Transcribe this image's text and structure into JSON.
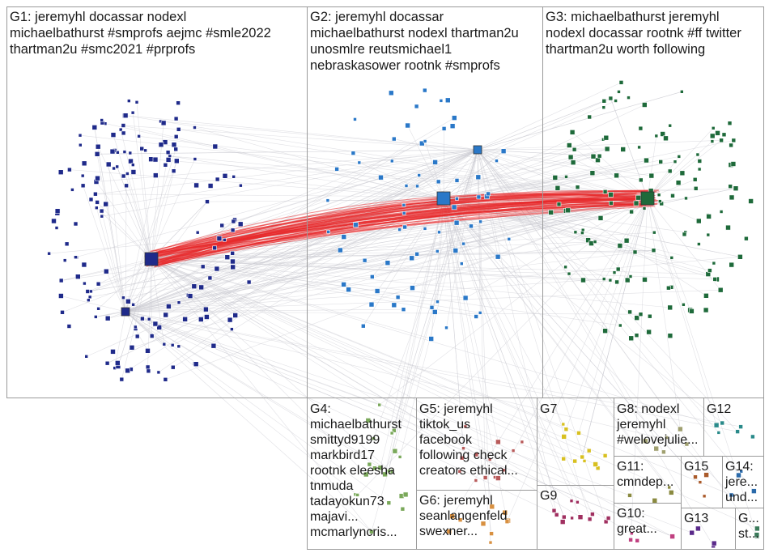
{
  "groups": [
    {
      "id": "G1",
      "label": "G1: jeremyhl docassar nodexl\nmichaelbathurst #smprofs aejmc #smle2022\nthartman2u #smc2021 #prprofs"
    },
    {
      "id": "G2",
      "label": "G2: jeremyhl docassar\nmichaelbathurst nodexl thartman2u\nunosmlre reutsmichael1\nnebraskasower rootnk #smprofs"
    },
    {
      "id": "G3",
      "label": "G3: michaelbathurst jeremyhl\nnodexl docassar rootnk #ff twitter\nthartman2u worth following"
    },
    {
      "id": "G4",
      "label": "G4:\nmichaelbathurst\nsmittyd9199\nmarkbird17\nrootnk eleesha\ntnmuda\ntadayokun73\nmajavi...\nmcmarlyncris..."
    },
    {
      "id": "G5",
      "label": "G5: jeremyhl\ntiktok_us\nfacebook\nfollowing check\ncreators ethical..."
    },
    {
      "id": "G6",
      "label": "G6: jeremyhl\nseanlangenfeld\nswexner..."
    },
    {
      "id": "G7",
      "label": "G7"
    },
    {
      "id": "G8",
      "label": "G8: nodexl\njeremyhl\n#welovejulie..."
    },
    {
      "id": "G9",
      "label": "G9"
    },
    {
      "id": "G10",
      "label": "G10:\ngreat..."
    },
    {
      "id": "G11",
      "label": "G11:\ncmndep..."
    },
    {
      "id": "G12",
      "label": "G12"
    },
    {
      "id": "G13",
      "label": "G13"
    },
    {
      "id": "G14",
      "label": "G14:\njere...\nund..."
    },
    {
      "id": "G15",
      "label": "G15"
    },
    {
      "id": "G16",
      "label": "G...\nst..."
    }
  ],
  "colors": {
    "border": "#9a9a9a",
    "edge_grey": "#c8c8d0",
    "edge_red": "#e8292b",
    "g1_node": "#1f2a8a",
    "g2_node": "#2a78c8",
    "g3_node": "#1e6a3a",
    "g4_node": "#7aa85a",
    "g5_node": "#b85a5a",
    "g6_node": "#d89040",
    "g7_node": "#d8c020",
    "g8_node": "#a0a070",
    "g9_node": "#a03060",
    "g10_node": "#c04080",
    "g11_node": "#8a8a40",
    "g12_node": "#2a8a8a",
    "g13_node": "#5a2a8a",
    "g14_node": "#2a6aaa",
    "g15_node": "#aa5a2a",
    "g16_node": "#3a7a5a"
  }
}
